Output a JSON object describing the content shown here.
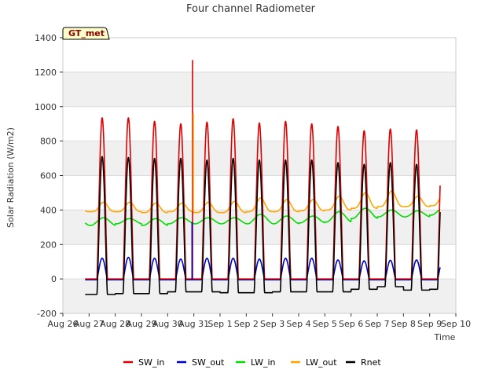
{
  "chart_data": {
    "type": "line",
    "title": "Four channel Radiometer",
    "xlabel": "Time",
    "ylabel": "Solar Radiation (W/m2)",
    "ylim": [
      -200,
      1400
    ],
    "xlim": [
      0,
      15
    ],
    "yticks": [
      -200,
      0,
      200,
      400,
      600,
      800,
      1000,
      1200,
      1400
    ],
    "xticks": [
      "Aug 26",
      "Aug 27",
      "Aug 28",
      "Aug 29",
      "Aug 30",
      "Aug 31",
      "Sep 1",
      "Sep 2",
      "Sep 3",
      "Sep 4",
      "Sep 5",
      "Sep 6",
      "Sep 7",
      "Sep 8",
      "Sep 9",
      "Sep 10"
    ],
    "station_label": "GT_met",
    "grid": "horizontal bands",
    "legend_position": "bottom",
    "x_start": 0.85,
    "x_end": 14.4,
    "days": [
      1,
      2,
      3,
      4,
      5,
      6,
      7,
      8,
      9,
      10,
      11,
      12,
      13,
      14
    ],
    "series": [
      {
        "name": "SW_in",
        "color": "#dd0000",
        "daily_peak": [
          935,
          935,
          915,
          900,
          910,
          930,
          905,
          915,
          900,
          885,
          860,
          870,
          865,
          850
        ]
      },
      {
        "name": "SW_out",
        "color": "#0000cc",
        "daily_peak": [
          120,
          125,
          120,
          115,
          120,
          120,
          115,
          120,
          120,
          110,
          105,
          108,
          110,
          105
        ],
        "night": -5
      },
      {
        "name": "LW_in",
        "color": "#00dd00",
        "daily_peak": [
          355,
          350,
          350,
          355,
          355,
          355,
          375,
          365,
          365,
          390,
          410,
          400,
          395,
          415
        ],
        "daily_base": [
          310,
          320,
          310,
          320,
          320,
          320,
          320,
          320,
          325,
          330,
          350,
          360,
          360,
          370
        ]
      },
      {
        "name": "LW_out",
        "color": "#ffa500",
        "daily_peak": [
          445,
          445,
          440,
          440,
          445,
          450,
          470,
          460,
          460,
          480,
          500,
          510,
          480,
          500
        ],
        "daily_base": [
          390,
          390,
          385,
          390,
          385,
          385,
          390,
          390,
          395,
          400,
          410,
          420,
          420,
          425
        ]
      },
      {
        "name": "Rnet",
        "color": "#000000",
        "daily_peak": [
          710,
          705,
          700,
          700,
          690,
          700,
          690,
          690,
          690,
          675,
          665,
          675,
          665,
          655
        ],
        "daily_night": [
          -90,
          -85,
          -85,
          -75,
          -75,
          -80,
          -80,
          -75,
          -75,
          -75,
          -60,
          -45,
          -65,
          -60
        ]
      }
    ],
    "spikes": [
      {
        "series": "SW_in",
        "x": 4.95,
        "y": 1270
      },
      {
        "series": "LW_out",
        "x": 4.98,
        "y": 960
      },
      {
        "series": "SW_out",
        "x": 4.93,
        "y": 330
      }
    ]
  }
}
